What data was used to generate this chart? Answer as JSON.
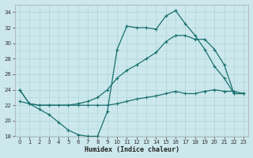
{
  "title": "",
  "xlabel": "Humidex (Indice chaleur)",
  "ylabel": "",
  "bg_color": "#cce8ec",
  "grid_color": "#b0d8dc",
  "line_color": "#1a7070",
  "xlim": [
    -0.5,
    23.5
  ],
  "ylim": [
    18,
    35
  ],
  "xticks": [
    0,
    1,
    2,
    3,
    4,
    5,
    6,
    7,
    8,
    9,
    10,
    11,
    12,
    13,
    14,
    15,
    16,
    17,
    18,
    19,
    20,
    21,
    22,
    23
  ],
  "yticks": [
    18,
    20,
    22,
    24,
    26,
    28,
    30,
    32,
    34
  ],
  "line1_x": [
    0,
    1,
    2,
    3,
    4,
    5,
    6,
    7,
    8,
    9,
    10,
    11,
    12,
    13,
    14,
    15,
    16,
    17,
    18,
    19,
    20,
    21,
    22,
    23
  ],
  "line1_y": [
    24.0,
    22.2,
    21.5,
    20.8,
    19.8,
    18.8,
    18.2,
    18.0,
    18.0,
    21.2,
    29.2,
    32.2,
    32.0,
    32.0,
    31.8,
    33.5,
    34.2,
    32.5,
    31.0,
    29.2,
    27.0,
    25.5,
    23.5,
    23.5
  ],
  "line2_x": [
    0,
    1,
    2,
    3,
    4,
    5,
    6,
    7,
    8,
    9,
    10,
    11,
    12,
    13,
    14,
    15,
    16,
    17,
    18,
    19,
    20,
    21,
    22,
    23
  ],
  "line2_y": [
    24.0,
    22.2,
    22.0,
    22.0,
    22.0,
    22.0,
    22.2,
    22.5,
    23.0,
    24.0,
    25.5,
    26.5,
    27.2,
    28.0,
    28.8,
    30.2,
    31.0,
    31.0,
    30.5,
    30.5,
    29.2,
    27.2,
    23.5,
    23.5
  ],
  "line3_x": [
    0,
    1,
    2,
    3,
    5,
    6,
    7,
    8,
    9,
    10,
    11,
    12,
    13,
    14,
    15,
    16,
    17,
    18,
    19,
    20,
    21,
    22,
    23
  ],
  "line3_y": [
    22.5,
    22.2,
    22.0,
    22.0,
    22.0,
    22.0,
    22.0,
    22.0,
    22.0,
    22.2,
    22.5,
    22.8,
    23.0,
    23.2,
    23.5,
    23.8,
    23.5,
    23.5,
    23.8,
    24.0,
    23.8,
    23.8,
    23.5
  ]
}
